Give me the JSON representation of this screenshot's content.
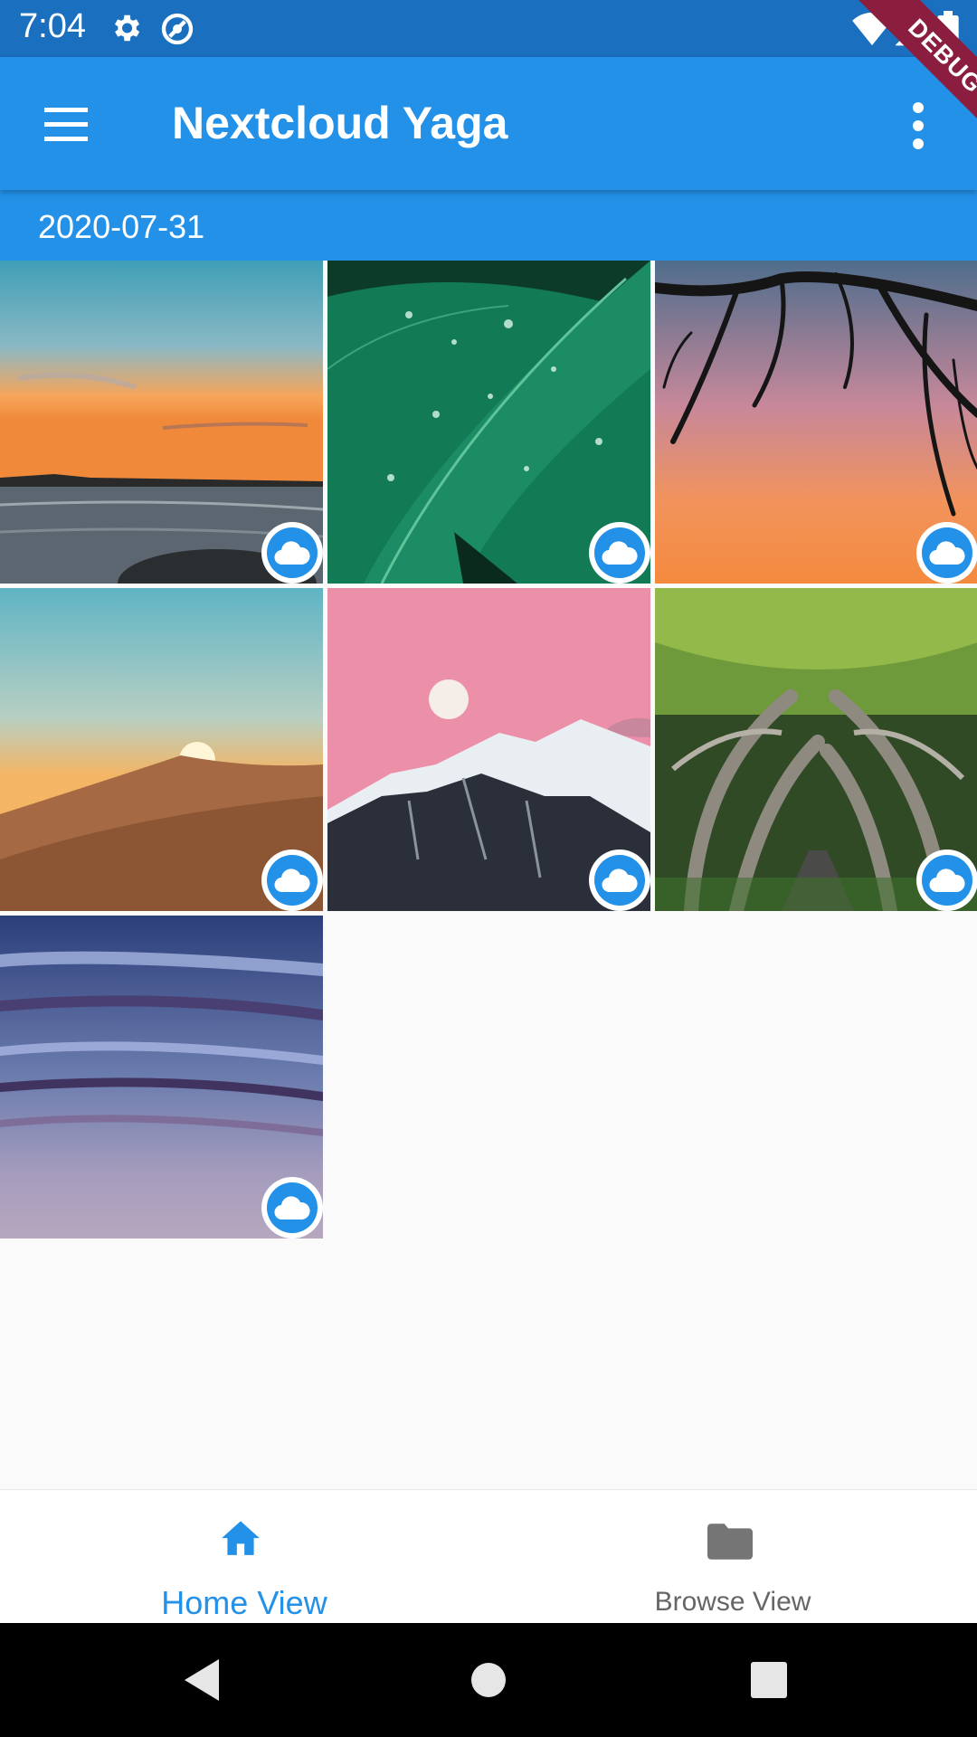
{
  "status_bar": {
    "time": "7:04",
    "icons": [
      "gear-icon",
      "sync-icon",
      "wifi-icon",
      "signal-icon",
      "battery-icon"
    ]
  },
  "debug_banner": "DEBUG",
  "app_bar": {
    "title": "Nextcloud Yaga",
    "background": "#2391e8"
  },
  "section": {
    "date": "2020-07-31"
  },
  "photos": [
    {
      "subject": "ocean-sunset",
      "synced": "cloud-icon"
    },
    {
      "subject": "leaf-dew",
      "synced": "cloud-icon"
    },
    {
      "subject": "tree-silhouette",
      "synced": "cloud-icon"
    },
    {
      "subject": "desert-dune",
      "synced": "cloud-icon"
    },
    {
      "subject": "pink-moon-mountain",
      "synced": "cloud-icon"
    },
    {
      "subject": "tree-tunnel",
      "synced": "cloud-icon"
    },
    {
      "subject": "purple-clouds",
      "synced": "cloud-icon"
    }
  ],
  "bottom_nav": {
    "items": [
      {
        "label": "Home View",
        "icon": "home-icon",
        "active": true
      },
      {
        "label": "Browse View",
        "icon": "folder-icon",
        "active": false
      }
    ]
  },
  "colors": {
    "primary": "#2391e8",
    "status_bar": "#1a6fbf",
    "inactive": "#666666"
  }
}
